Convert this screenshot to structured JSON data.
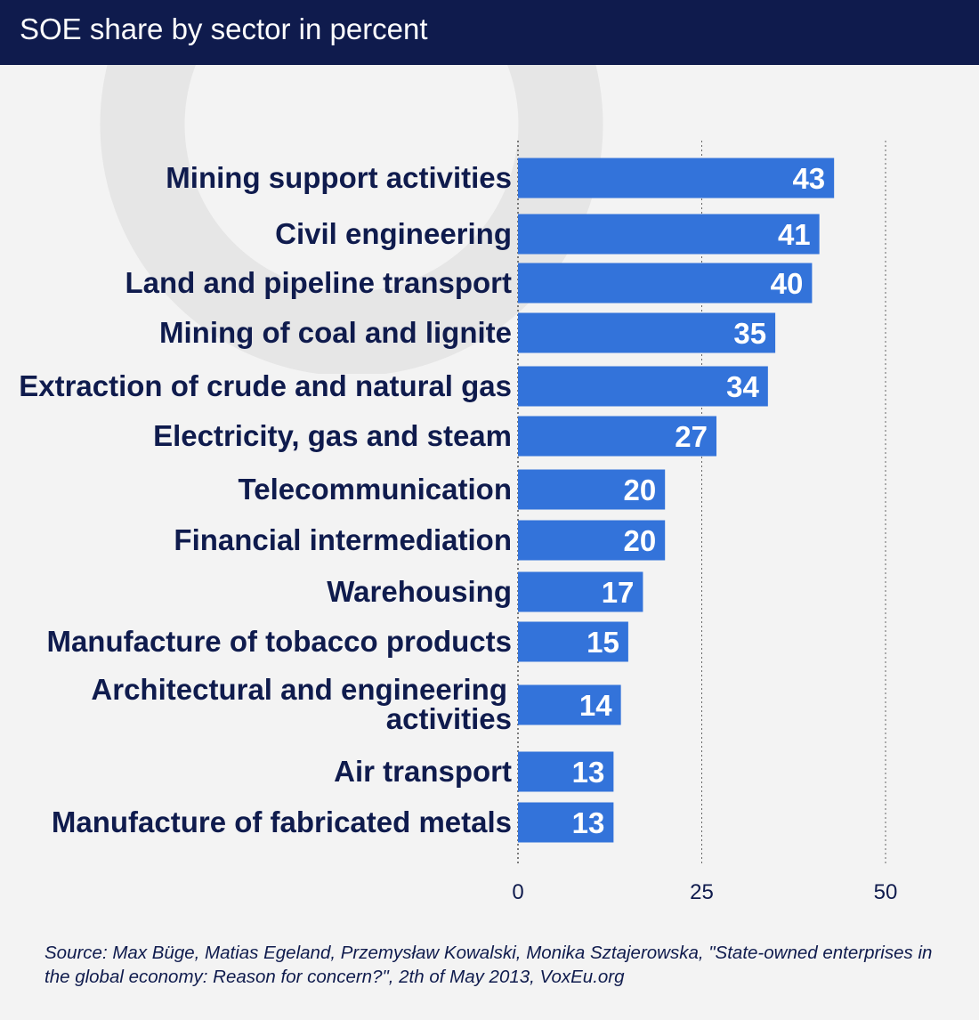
{
  "header": {
    "title": "SOE share by sector in percent"
  },
  "chart_data": {
    "type": "bar",
    "orientation": "horizontal",
    "categories": [
      "Mining support activities",
      "Civil engineering",
      "Land and pipeline transport",
      "Mining of coal and lignite",
      "Extraction of crude and natural gas",
      "Electricity, gas and steam",
      "Telecommunication",
      "Financial intermediation",
      "Warehousing",
      "Manufacture of tobacco products",
      "Architectural and engineering activities",
      "Air transport",
      "Manufacture of fabricated metals"
    ],
    "values": [
      43,
      41,
      40,
      35,
      34,
      27,
      20,
      20,
      17,
      15,
      14,
      13,
      13
    ],
    "xlim": [
      0,
      50
    ],
    "xticks": [
      0,
      25,
      50
    ],
    "grid": "vertical dashed",
    "bar_color": "#3373da"
  },
  "source": "Source: Max Büge, Matias Egeland, Przemysław Kowalski, Monika Sztajerowska, \"State-owned enterprises in the global economy: Reason for concern?\", 2th of May 2013, VoxEu.org"
}
